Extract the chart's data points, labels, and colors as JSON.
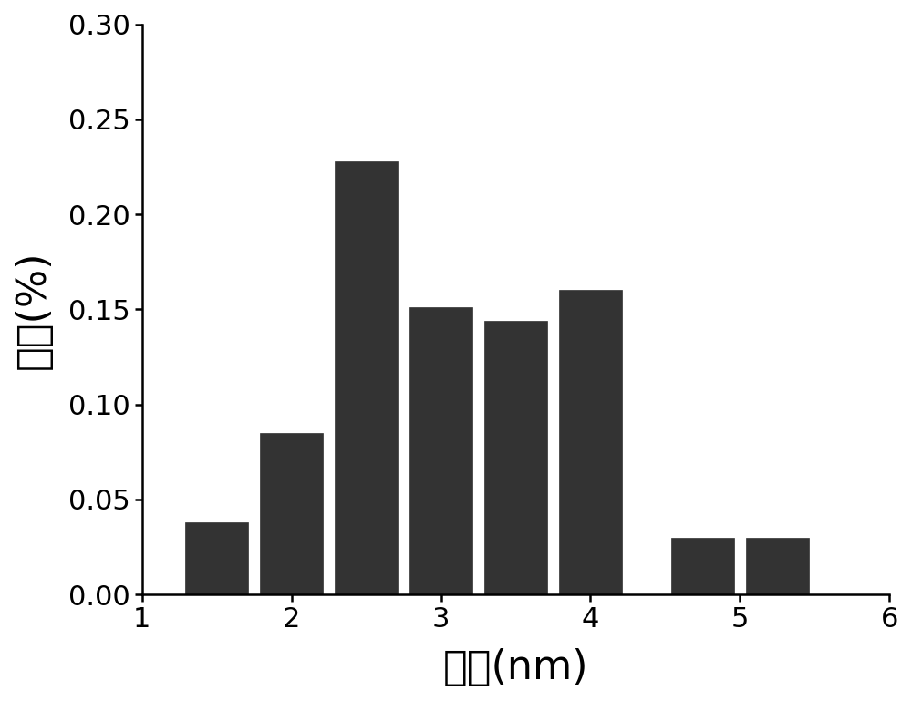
{
  "bar_centers": [
    1.5,
    2.0,
    2.5,
    3.0,
    3.5,
    4.0,
    4.75,
    5.25
  ],
  "bar_heights": [
    0.038,
    0.085,
    0.228,
    0.151,
    0.144,
    0.16,
    0.03,
    0.03
  ],
  "bar_width": 0.42,
  "bar_color": "#333333",
  "bar_edgecolor": "#333333",
  "xlim": [
    1,
    6
  ],
  "ylim": [
    0,
    0.3
  ],
  "xticks": [
    1,
    2,
    3,
    4,
    5,
    6
  ],
  "yticks": [
    0.0,
    0.05,
    0.1,
    0.15,
    0.2,
    0.25,
    0.3
  ],
  "xlabel": "直径(nm)",
  "ylabel": "频率(%)",
  "xlabel_fontsize": 32,
  "ylabel_fontsize": 32,
  "tick_fontsize": 22,
  "background_color": "#ffffff",
  "fig_width": 10.0,
  "fig_height": 7.69
}
